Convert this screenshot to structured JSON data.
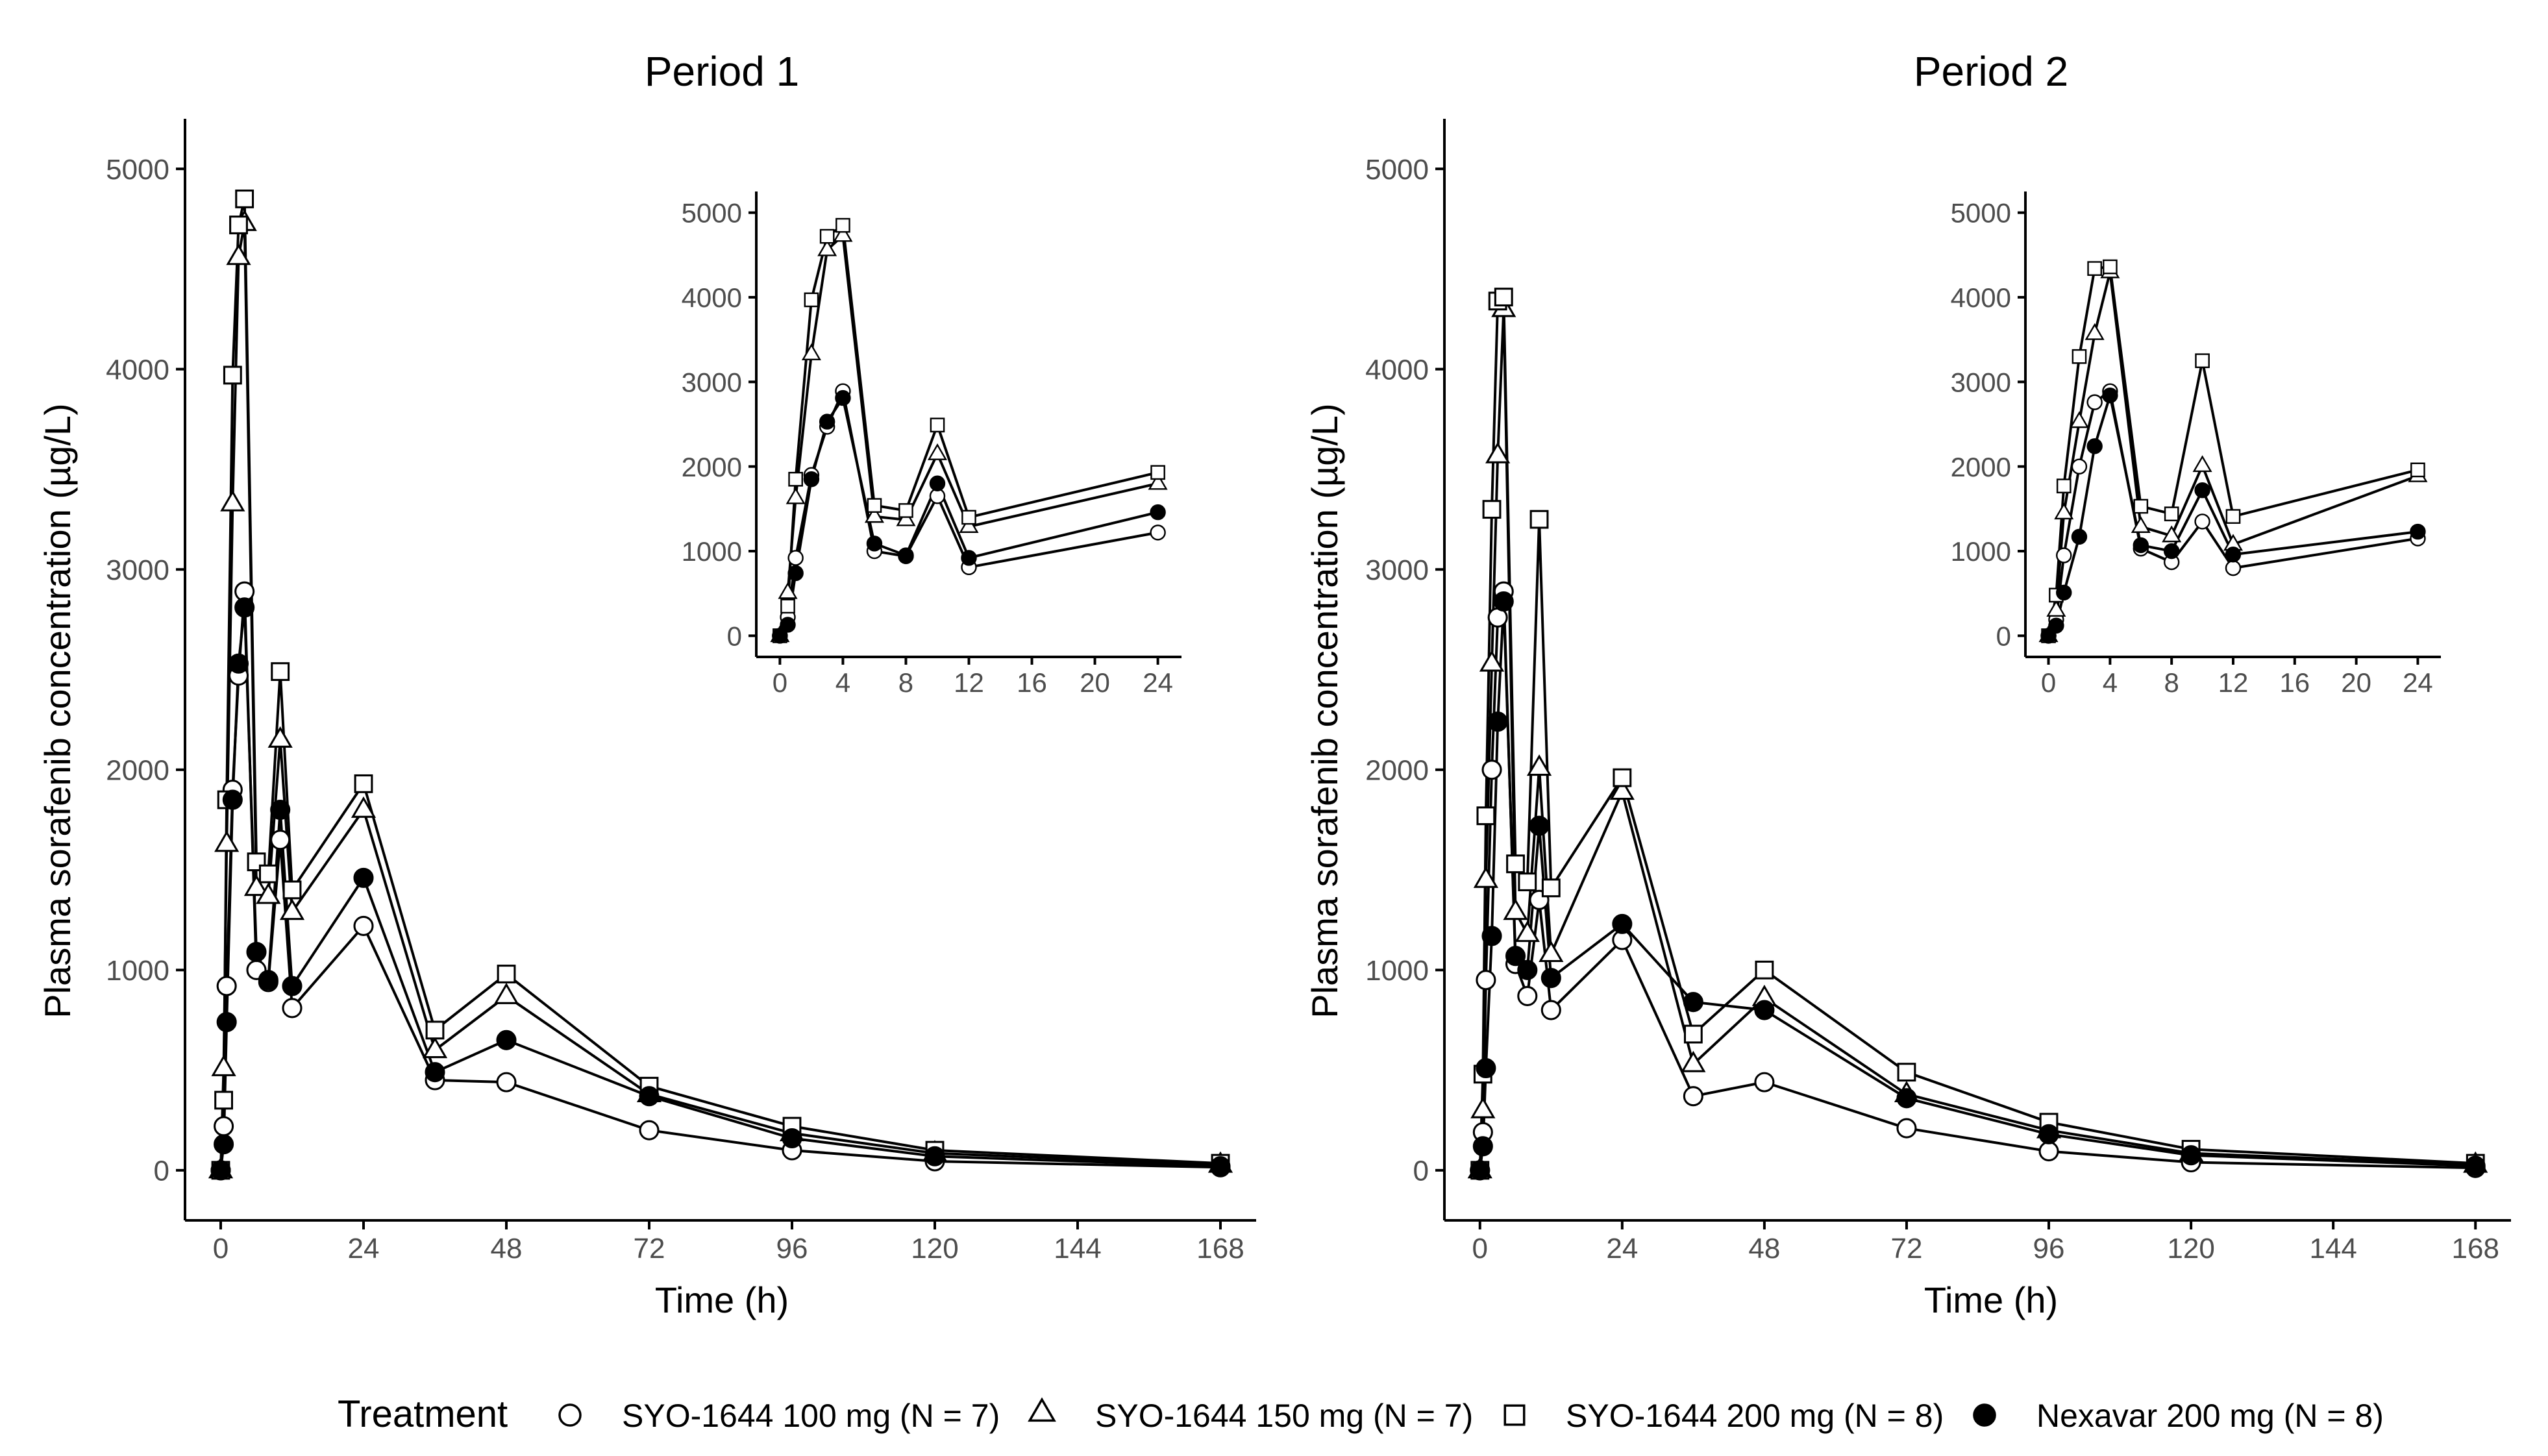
{
  "chart_data": [
    {
      "type": "line",
      "title": "Period 1",
      "xlabel": "Time (h)",
      "ylabel": "Plasma sorafenib concentration (µg/L)",
      "xlim": [
        -6,
        174
      ],
      "ylim": [
        -250,
        5250
      ],
      "xticks": [
        0,
        24,
        48,
        72,
        96,
        120,
        144,
        168
      ],
      "yticks": [
        0,
        1000,
        2000,
        3000,
        4000,
        5000
      ],
      "x": [
        0,
        0.5,
        1,
        2,
        3,
        4,
        6,
        8,
        10,
        12,
        24,
        36,
        48,
        72,
        96,
        120,
        168
      ],
      "series": [
        {
          "name": "SYO-1644 100 mg (N = 7)",
          "marker": "circle-open",
          "values": [
            0,
            220,
            920,
            1900,
            2470,
            2890,
            1000,
            940,
            1650,
            810,
            1220,
            450,
            440,
            200,
            100,
            45,
            15
          ]
        },
        {
          "name": "SYO-1644 150 mg (N = 7)",
          "marker": "triangle-open",
          "values": [
            0,
            510,
            1630,
            3330,
            4560,
            4730,
            1410,
            1370,
            2150,
            1290,
            1800,
            600,
            870,
            380,
            185,
            85,
            28
          ]
        },
        {
          "name": "SYO-1644 200 mg (N = 8)",
          "marker": "square-open",
          "values": [
            0,
            350,
            1850,
            3970,
            4720,
            4850,
            1540,
            1480,
            2490,
            1400,
            1930,
            700,
            980,
            420,
            220,
            100,
            35
          ]
        },
        {
          "name": "Nexavar 200 mg (N = 8)",
          "marker": "circle-filled",
          "values": [
            0,
            130,
            740,
            1850,
            2530,
            2810,
            1090,
            950,
            1800,
            920,
            1460,
            490,
            650,
            370,
            160,
            70,
            20
          ]
        }
      ],
      "inset": {
        "xlim": [
          -1.5,
          25.5
        ],
        "ylim": [
          -250,
          5250
        ],
        "xticks": [
          0,
          4,
          8,
          12,
          16,
          20,
          24
        ],
        "yticks": [
          0,
          1000,
          2000,
          3000,
          4000,
          5000
        ],
        "xmax": 24
      }
    },
    {
      "type": "line",
      "title": "Period 2",
      "xlabel": "Time (h)",
      "ylabel": "Plasma sorafenib concentration (µg/L)",
      "xlim": [
        -6,
        174
      ],
      "ylim": [
        -250,
        5250
      ],
      "xticks": [
        0,
        24,
        48,
        72,
        96,
        120,
        144,
        168
      ],
      "yticks": [
        0,
        1000,
        2000,
        3000,
        4000,
        5000
      ],
      "x": [
        0,
        0.5,
        1,
        2,
        3,
        4,
        6,
        8,
        10,
        12,
        24,
        36,
        48,
        72,
        96,
        120,
        168
      ],
      "series": [
        {
          "name": "SYO-1644 100 mg (N = 7)",
          "marker": "circle-open",
          "values": [
            0,
            190,
            950,
            2000,
            2760,
            2890,
            1030,
            870,
            1350,
            800,
            1150,
            370,
            440,
            210,
            95,
            40,
            12
          ]
        },
        {
          "name": "SYO-1644 150 mg (N = 7)",
          "marker": "triangle-open",
          "values": [
            0,
            300,
            1450,
            2530,
            3570,
            4300,
            1290,
            1180,
            2010,
            1080,
            1890,
            530,
            860,
            380,
            200,
            85,
            28
          ]
        },
        {
          "name": "SYO-1644 200 mg (N = 8)",
          "marker": "square-open",
          "values": [
            0,
            480,
            1770,
            3300,
            4340,
            4360,
            1530,
            1440,
            3250,
            1410,
            1960,
            680,
            1000,
            490,
            240,
            105,
            35
          ]
        },
        {
          "name": "Nexavar 200 mg (N = 8)",
          "marker": "circle-filled",
          "values": [
            0,
            120,
            510,
            1170,
            2240,
            2840,
            1070,
            1000,
            1720,
            960,
            1230,
            840,
            800,
            360,
            180,
            75,
            22
          ]
        }
      ],
      "inset": {
        "xlim": [
          -1.5,
          25.5
        ],
        "ylim": [
          -250,
          5250
        ],
        "xticks": [
          0,
          4,
          8,
          12,
          16,
          20,
          24
        ],
        "yticks": [
          0,
          1000,
          2000,
          3000,
          4000,
          5000
        ],
        "xmax": 24
      }
    }
  ],
  "legend": {
    "title": "Treatment",
    "placement": "bottom",
    "items": [
      {
        "label": "SYO-1644 100 mg (N = 7)",
        "marker": "circle-open"
      },
      {
        "label": "SYO-1644 150 mg (N = 7)",
        "marker": "triangle-open"
      },
      {
        "label": "SYO-1644 200 mg (N = 8)",
        "marker": "square-open"
      },
      {
        "label": "Nexavar 200 mg (N = 8)",
        "marker": "circle-filled"
      }
    ]
  }
}
